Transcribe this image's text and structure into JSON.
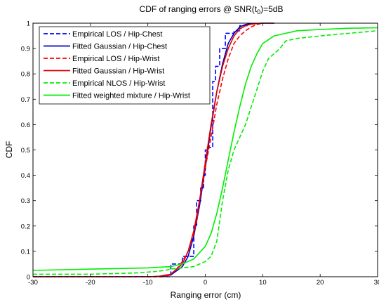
{
  "chart_data": {
    "type": "line",
    "title_parts": [
      "CDF of ranging errors @ SNR(t",
      "0",
      ")=5dB"
    ],
    "xlabel": "Ranging error (cm)",
    "ylabel": "CDF",
    "xlim": [
      -30,
      30
    ],
    "ylim": [
      0,
      1
    ],
    "xticks": [
      -30,
      -20,
      -10,
      0,
      10,
      20,
      30
    ],
    "xtick_labels": [
      "-30",
      "-20",
      "-10",
      "0",
      "10",
      "20",
      "30"
    ],
    "yticks": [
      0,
      0.1,
      0.2,
      0.3,
      0.4,
      0.5,
      0.6,
      0.7,
      0.8,
      0.9,
      1
    ],
    "ytick_labels": [
      "0",
      "0.1",
      "0.2",
      "0.3",
      "0.4",
      "0.5",
      "0.6",
      "0.7",
      "0.8",
      "0.9",
      "1"
    ],
    "grid": false,
    "legend_position": "top-left",
    "series": [
      {
        "name": "Empirical LOS / Hip-Chest",
        "color": "#0000ff",
        "dash": "dashed",
        "step": true,
        "x": [
          -30,
          -6,
          -6,
          -4,
          -4,
          -2,
          -2,
          -1.5,
          -1.5,
          -0.8,
          -0.8,
          -0.3,
          -0.3,
          0,
          0,
          0.3,
          0.3,
          1.3,
          1.3,
          1.8,
          1.8,
          2.5,
          2.5,
          3.5,
          3.5,
          5,
          5,
          6,
          6,
          7.5,
          7.5
        ],
        "y": [
          0,
          0,
          0.05,
          0.05,
          0.08,
          0.08,
          0.2,
          0.2,
          0.3,
          0.3,
          0.35,
          0.35,
          0.4,
          0.4,
          0.5,
          0.5,
          0.51,
          0.51,
          0.77,
          0.77,
          0.83,
          0.83,
          0.9,
          0.9,
          0.96,
          0.96,
          0.97,
          0.97,
          0.99,
          0.99,
          1
        ]
      },
      {
        "name": "Fitted Gaussian / Hip-Chest",
        "color": "#0000c0",
        "dash": "solid",
        "step": false,
        "x": [
          -30,
          -10,
          -8,
          -6,
          -4,
          -3,
          -2,
          -1,
          0,
          1,
          2,
          3,
          4,
          5,
          6,
          7,
          8,
          10,
          12
        ],
        "y": [
          0,
          0,
          0.001,
          0.007,
          0.04,
          0.08,
          0.16,
          0.28,
          0.43,
          0.59,
          0.73,
          0.84,
          0.92,
          0.96,
          0.985,
          0.995,
          0.998,
          1,
          1
        ]
      },
      {
        "name": "Empirical LOS / Hip-Wrist",
        "color": "#ff0000",
        "dash": "dashed",
        "step": false,
        "x": [
          -30,
          -7,
          -6,
          -5,
          -4,
          -3,
          -2,
          -1.5,
          -1,
          -0.5,
          0,
          1,
          2,
          3,
          4,
          5,
          6,
          7,
          8,
          9,
          10
        ],
        "y": [
          0,
          0,
          0.01,
          0.03,
          0.06,
          0.1,
          0.17,
          0.22,
          0.3,
          0.36,
          0.43,
          0.55,
          0.68,
          0.78,
          0.86,
          0.92,
          0.95,
          0.97,
          0.985,
          0.995,
          1
        ]
      },
      {
        "name": "Fitted Gaussian / Hip-Wrist",
        "color": "#dd0000",
        "dash": "solid",
        "step": false,
        "x": [
          -30,
          -10,
          -8,
          -6,
          -4,
          -3,
          -2,
          -1,
          0,
          1,
          2,
          3,
          4,
          5,
          6,
          7,
          8,
          10,
          12
        ],
        "y": [
          0,
          0,
          0.002,
          0.01,
          0.05,
          0.1,
          0.18,
          0.3,
          0.45,
          0.6,
          0.73,
          0.83,
          0.9,
          0.95,
          0.977,
          0.99,
          0.996,
          1,
          1
        ]
      },
      {
        "name": "Empirical NLOS / Hip-Wrist",
        "color": "#00ee00",
        "dash": "dashed",
        "step": false,
        "x": [
          -30,
          -20,
          -12,
          -9,
          -7,
          -6,
          -4,
          -2,
          0,
          1,
          2,
          3,
          4,
          5,
          6,
          7,
          8,
          9,
          10,
          11,
          12,
          13,
          14,
          16,
          20,
          25,
          30
        ],
        "y": [
          0.01,
          0.01,
          0.015,
          0.02,
          0.025,
          0.03,
          0.035,
          0.04,
          0.06,
          0.08,
          0.14,
          0.3,
          0.42,
          0.5,
          0.55,
          0.6,
          0.67,
          0.74,
          0.81,
          0.86,
          0.88,
          0.9,
          0.93,
          0.94,
          0.95,
          0.96,
          0.97
        ]
      },
      {
        "name": "Fitted weighted mixture / Hip-Wrist",
        "color": "#00ee00",
        "dash": "solid",
        "step": false,
        "x": [
          -30,
          -20,
          -10,
          -6,
          -4,
          -2,
          0,
          1,
          2,
          3,
          4,
          5,
          6,
          7,
          8,
          9,
          10,
          12,
          14,
          16,
          20,
          25,
          30
        ],
        "y": [
          0.025,
          0.03,
          0.035,
          0.04,
          0.05,
          0.07,
          0.12,
          0.17,
          0.25,
          0.35,
          0.46,
          0.57,
          0.67,
          0.76,
          0.83,
          0.88,
          0.92,
          0.95,
          0.96,
          0.97,
          0.975,
          0.98,
          0.982
        ]
      }
    ]
  }
}
